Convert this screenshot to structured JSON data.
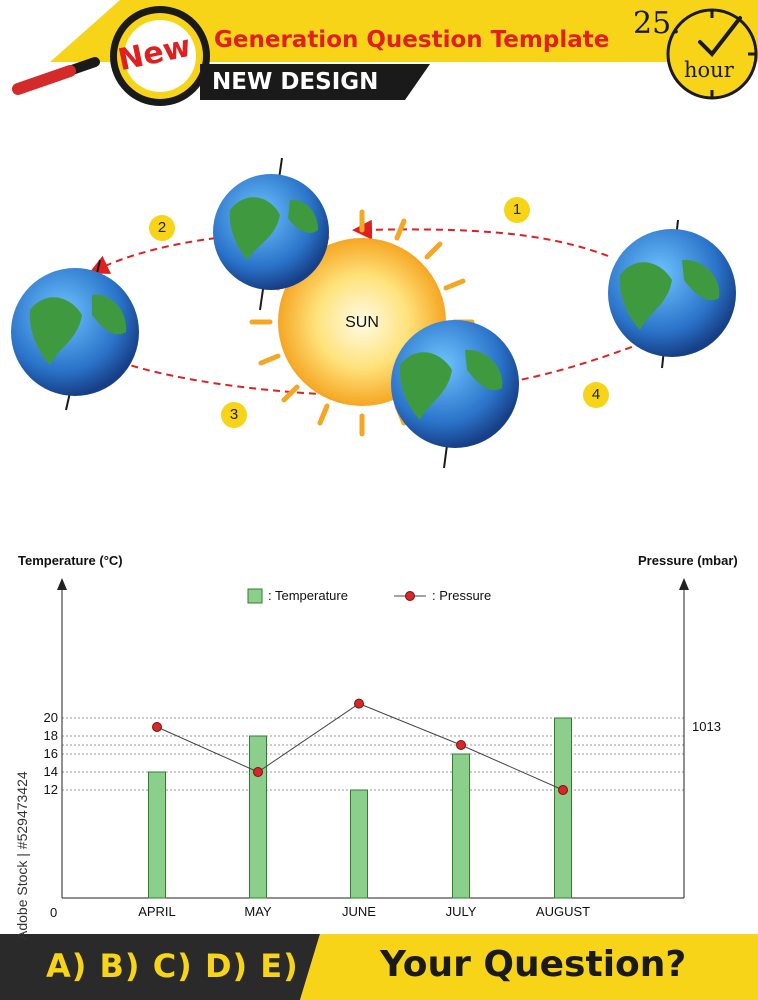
{
  "header": {
    "badge_label": "New",
    "title": "Generation Question Template",
    "subtitle": "NEW DESIGN",
    "clock_number": "25.",
    "clock_unit": "hour"
  },
  "orbit": {
    "sun_label": "SUN",
    "positions": [
      "1",
      "2",
      "3",
      "4"
    ]
  },
  "chart_data": {
    "type": "bar",
    "categories": [
      "APRIL",
      "MAY",
      "JUNE",
      "JULY",
      "AUGUST"
    ],
    "series": [
      {
        "name": ": Temperature",
        "type": "bar",
        "values": [
          14,
          18,
          12,
          16,
          20
        ]
      },
      {
        "name": ": Pressure",
        "type": "line",
        "values": [
          19,
          14,
          21.6,
          17,
          12
        ]
      }
    ],
    "ylabel_left": "Temperature (°C)",
    "ylabel_right": "Pressure (mbar)",
    "y_ticks": [
      "12",
      "14",
      "16",
      "18",
      "20"
    ],
    "origin_label": "0",
    "right_tick_label": "1013",
    "ylim": [
      0,
      25
    ],
    "grid": true,
    "legend_position": "top-center",
    "colors": {
      "bar": "#8ccf8c",
      "line": "#444444",
      "marker": "#d62828"
    }
  },
  "footer": {
    "answers": "A) B) C) D) E)",
    "question": "Your Question?",
    "stock_id": "Adobe Stock | #529473424"
  }
}
